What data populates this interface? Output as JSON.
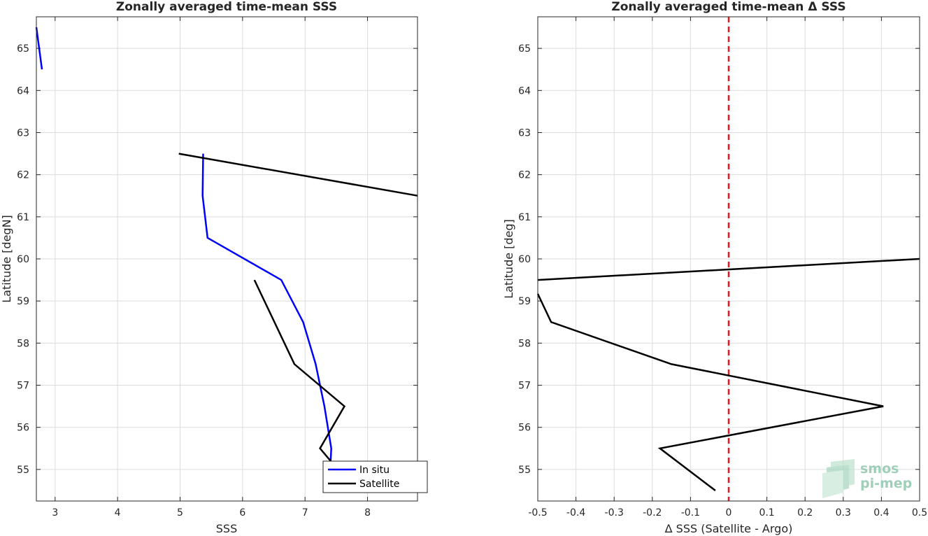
{
  "chart_data": [
    {
      "type": "line",
      "title": "Zonally averaged time-mean SSS",
      "xlabel": "SSS",
      "ylabel": "Latitude [degN]",
      "xlim": [
        2.7,
        8.8
      ],
      "ylim": [
        54.25,
        65.75
      ],
      "xticks": [
        "3",
        "4",
        "5",
        "6",
        "7",
        "8"
      ],
      "yticks": [
        "55",
        "56",
        "57",
        "58",
        "59",
        "60",
        "61",
        "62",
        "63",
        "64",
        "65"
      ],
      "grid": true,
      "legend_position": "bottom-right",
      "series": [
        {
          "name": "In situ",
          "color": "#0000ff",
          "segments": [
            [
              {
                "x": 2.7,
                "y": 65.5
              },
              {
                "x": 2.79,
                "y": 64.5
              }
            ],
            [
              {
                "x": 5.37,
                "y": 62.5
              },
              {
                "x": 5.36,
                "y": 61.5
              },
              {
                "x": 5.44,
                "y": 60.5
              },
              {
                "x": 6.62,
                "y": 59.5
              },
              {
                "x": 6.97,
                "y": 58.5
              },
              {
                "x": 7.17,
                "y": 57.5
              },
              {
                "x": 7.31,
                "y": 56.5
              },
              {
                "x": 7.42,
                "y": 55.5
              },
              {
                "x": 7.41,
                "y": 55.2
              }
            ]
          ]
        },
        {
          "name": "Satellite",
          "color": "#000000",
          "segments": [
            [
              {
                "x": 4.98,
                "y": 62.5
              },
              {
                "x": 8.8,
                "y": 61.5
              }
            ],
            [
              {
                "x": 6.19,
                "y": 59.5
              },
              {
                "x": 6.83,
                "y": 57.5
              },
              {
                "x": 7.63,
                "y": 56.5
              },
              {
                "x": 7.24,
                "y": 55.5
              },
              {
                "x": 7.41,
                "y": 55.2
              }
            ]
          ]
        }
      ]
    },
    {
      "type": "line",
      "title": "Zonally averaged time-mean Δ SSS",
      "xlabel": "Δ SSS (Satellite - Argo)",
      "ylabel": "Latitude [deg]",
      "xlim": [
        -0.5,
        0.5
      ],
      "ylim": [
        54.25,
        65.75
      ],
      "xticks": [
        "-0.5",
        "-0.4",
        "-0.3",
        "-0.2",
        "-0.1",
        "0",
        "0.1",
        "0.2",
        "0.3",
        "0.4",
        "0.5"
      ],
      "yticks": [
        "55",
        "56",
        "57",
        "58",
        "59",
        "60",
        "61",
        "62",
        "63",
        "64",
        "65"
      ],
      "grid": true,
      "reference_line": {
        "x": 0,
        "color": "#e8161e",
        "style": "dashed"
      },
      "series": [
        {
          "color": "#000000",
          "segments": [
            [
              {
                "x": 0.5,
                "y": 60.0
              },
              {
                "x": -0.5,
                "y": 59.5
              }
            ],
            [
              {
                "x": -0.5,
                "y": 59.17
              },
              {
                "x": -0.465,
                "y": 58.5
              },
              {
                "x": -0.15,
                "y": 57.5
              },
              {
                "x": 0.405,
                "y": 56.5
              },
              {
                "x": -0.18,
                "y": 55.5
              },
              {
                "x": -0.035,
                "y": 54.5
              }
            ]
          ]
        }
      ]
    }
  ],
  "logo": {
    "line1": "smos",
    "line2": "pi-mep",
    "color": "#9fcfb8"
  }
}
